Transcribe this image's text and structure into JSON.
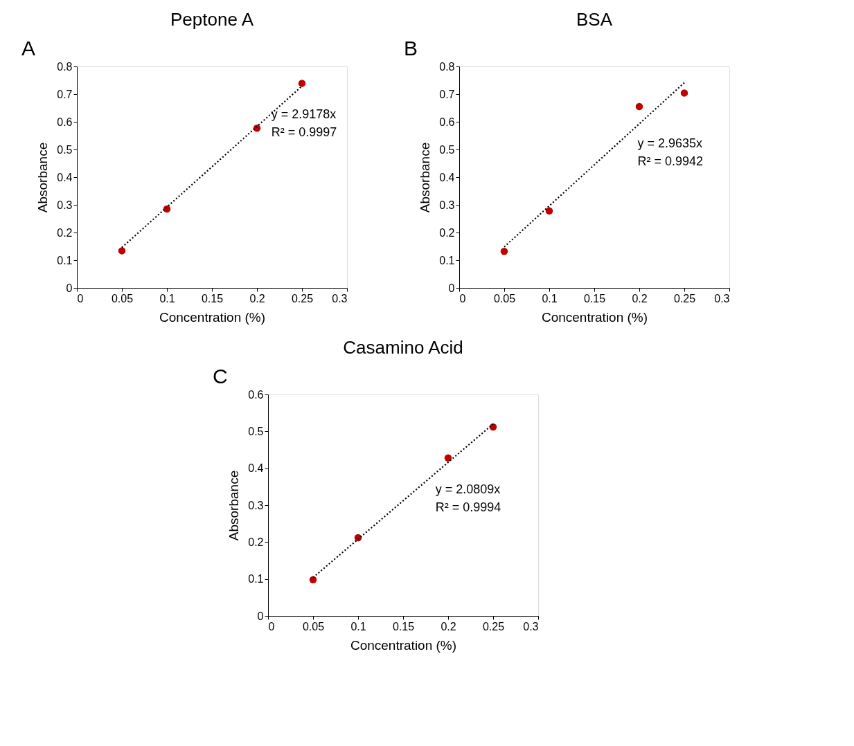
{
  "chart_data": [
    {
      "type": "scatter",
      "title": "Peptone A",
      "xlabel": "Concentration (%)",
      "ylabel": "Absorbance",
      "marker": "circle",
      "grid": false,
      "annotations": [
        "A",
        "y = 2.9178x",
        "R² = 0.9997"
      ],
      "xlim": [
        0,
        0.3
      ],
      "xticks": [
        0,
        0.05,
        0.1,
        0.15,
        0.2,
        0.25,
        0.3
      ],
      "ylim": [
        0,
        0.8
      ],
      "yticks": [
        0,
        0.1,
        0.2,
        0.3,
        0.4,
        0.5,
        0.6,
        0.7,
        0.8
      ],
      "series": [
        {
          "type": "scatter",
          "color": "#c00000",
          "x": [
            0.05,
            0.1,
            0.2,
            0.25
          ],
          "values": [
            0.134,
            0.285,
            0.577,
            0.739
          ]
        },
        {
          "type": "line",
          "color": "#000000",
          "line_style": "dotted",
          "marker": "none",
          "x": [
            0.05,
            0.25
          ],
          "values": [
            0.146,
            0.729
          ]
        }
      ]
    },
    {
      "type": "scatter",
      "title": "BSA",
      "xlabel": "Concentration (%)",
      "ylabel": "Absorbance",
      "marker": "circle",
      "grid": false,
      "annotations": [
        "B",
        "y = 2.9635x",
        "R² = 0.9942"
      ],
      "xlim": [
        0,
        0.3
      ],
      "xticks": [
        0,
        0.05,
        0.1,
        0.15,
        0.2,
        0.25,
        0.3
      ],
      "ylim": [
        0,
        0.8
      ],
      "yticks": [
        0,
        0.1,
        0.2,
        0.3,
        0.4,
        0.5,
        0.6,
        0.7,
        0.8
      ],
      "series": [
        {
          "type": "scatter",
          "color": "#c00000",
          "x": [
            0.05,
            0.1,
            0.2,
            0.25
          ],
          "values": [
            0.132,
            0.278,
            0.655,
            0.704
          ]
        },
        {
          "type": "line",
          "color": "#000000",
          "line_style": "dotted",
          "marker": "none",
          "x": [
            0.05,
            0.25
          ],
          "values": [
            0.148,
            0.741
          ]
        }
      ]
    },
    {
      "type": "scatter",
      "title": "Casamino Acid",
      "xlabel": "Concentration (%)",
      "ylabel": "Absorbance",
      "marker": "circle",
      "grid": false,
      "annotations": [
        "C",
        "y = 2.0809x",
        "R² = 0.9994"
      ],
      "xlim": [
        0,
        0.3
      ],
      "xticks": [
        0,
        0.05,
        0.1,
        0.15,
        0.2,
        0.25,
        0.3
      ],
      "ylim": [
        0,
        0.6
      ],
      "yticks": [
        0,
        0.1,
        0.2,
        0.3,
        0.4,
        0.5,
        0.6
      ],
      "series": [
        {
          "type": "scatter",
          "color": "#c00000",
          "x": [
            0.05,
            0.1,
            0.2,
            0.25
          ],
          "values": [
            0.098,
            0.212,
            0.428,
            0.512
          ]
        },
        {
          "type": "line",
          "color": "#000000",
          "line_style": "dotted",
          "marker": "none",
          "x": [
            0.05,
            0.25
          ],
          "values": [
            0.104,
            0.52
          ]
        }
      ]
    }
  ]
}
